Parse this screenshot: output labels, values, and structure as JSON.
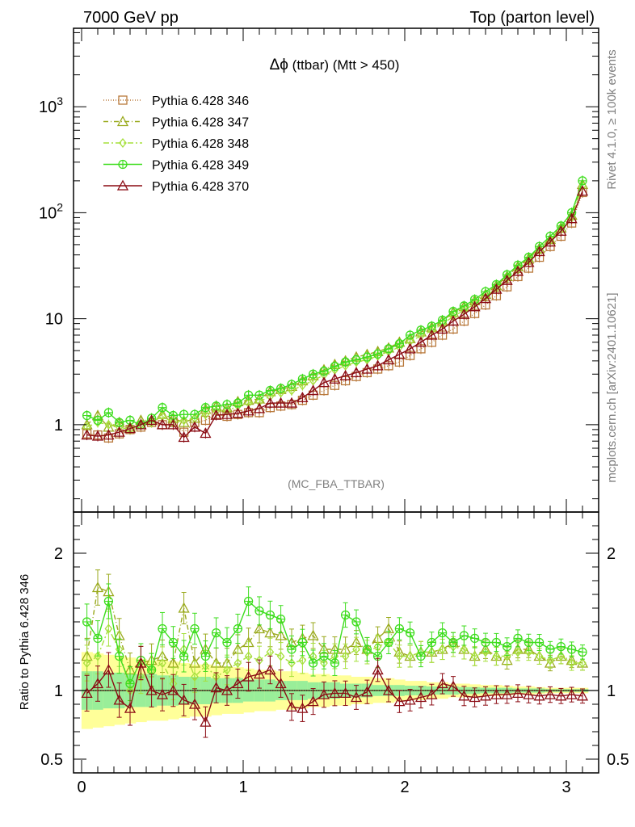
{
  "header": {
    "left_title": "7000 GeV pp",
    "right_title": "Top (parton level)"
  },
  "side_labels": {
    "rivet": "Rivet 4.1.0, ≥ 100k events",
    "mcplots": "mcplots.cern.ch [arXiv:2401.10621]"
  },
  "chart_data": {
    "type": "line",
    "title_symbol": "Δϕ",
    "title": "(ttbar) (Mtt > 450)",
    "watermark": "(MC_FBA_TTBAR)",
    "x": [
      0.033,
      0.1,
      0.167,
      0.233,
      0.3,
      0.367,
      0.433,
      0.5,
      0.567,
      0.633,
      0.7,
      0.767,
      0.833,
      0.9,
      0.967,
      1.033,
      1.1,
      1.167,
      1.233,
      1.3,
      1.367,
      1.433,
      1.5,
      1.567,
      1.633,
      1.7,
      1.767,
      1.833,
      1.9,
      1.967,
      2.033,
      2.1,
      2.167,
      2.233,
      2.3,
      2.367,
      2.433,
      2.5,
      2.567,
      2.633,
      2.7,
      2.767,
      2.833,
      2.9,
      2.967,
      3.033,
      3.1
    ],
    "xlim": [
      -0.05,
      3.2
    ],
    "xticks": [
      "0",
      "1",
      "2",
      "3"
    ],
    "xtick_values": [
      0,
      1,
      2,
      3
    ],
    "main": {
      "yscale": "log",
      "ylim": [
        0.15,
        5500
      ],
      "ytick_labels": [
        {
          "value": 1,
          "base": "1",
          "exp": ""
        },
        {
          "value": 10,
          "base": "10",
          "exp": ""
        },
        {
          "value": 100,
          "base": "10",
          "exp": "2"
        },
        {
          "value": 1000,
          "base": "10",
          "exp": "3"
        }
      ]
    },
    "ratio": {
      "ylabel": "Ratio to Pythia 6.428 346",
      "ylim": [
        0.4,
        2.3
      ],
      "ytick_labels": [
        "0.5",
        "1",
        "2"
      ],
      "ytick_values": [
        0.5,
        1,
        2
      ],
      "band_green_halfwidth": [
        0.14,
        0.14,
        0.13,
        0.13,
        0.12,
        0.12,
        0.12,
        0.11,
        0.11,
        0.1,
        0.1,
        0.1,
        0.09,
        0.09,
        0.09,
        0.08,
        0.08,
        0.08,
        0.07,
        0.07,
        0.07,
        0.06,
        0.06,
        0.06,
        0.05,
        0.05,
        0.05,
        0.04,
        0.04,
        0.04,
        0.035,
        0.035,
        0.03,
        0.03,
        0.03,
        0.025,
        0.025,
        0.02,
        0.02,
        0.02,
        0.015,
        0.015,
        0.015,
        0.01,
        0.01,
        0.01,
        0.01
      ],
      "band_yellow_halfwidth": [
        0.28,
        0.27,
        0.26,
        0.25,
        0.24,
        0.23,
        0.22,
        0.22,
        0.21,
        0.2,
        0.19,
        0.19,
        0.18,
        0.17,
        0.17,
        0.16,
        0.15,
        0.15,
        0.14,
        0.14,
        0.13,
        0.12,
        0.12,
        0.11,
        0.11,
        0.1,
        0.1,
        0.09,
        0.09,
        0.08,
        0.07,
        0.07,
        0.06,
        0.06,
        0.05,
        0.05,
        0.045,
        0.04,
        0.04,
        0.035,
        0.03,
        0.03,
        0.025,
        0.02,
        0.02,
        0.02,
        0.02
      ]
    },
    "series": [
      {
        "name": "Pythia 6.428 346",
        "color": "#b8783a",
        "marker": "square",
        "dash": "1,2",
        "values": [
          0.82,
          0.8,
          0.75,
          0.82,
          0.9,
          0.95,
          1.05,
          1.0,
          1.05,
          0.85,
          1.05,
          1.1,
          1.25,
          1.2,
          1.25,
          1.3,
          1.3,
          1.45,
          1.5,
          1.55,
          1.7,
          1.9,
          2.1,
          2.35,
          2.6,
          2.85,
          3.1,
          3.35,
          3.6,
          3.9,
          4.5,
          5.2,
          6.0,
          7.0,
          8.0,
          9.5,
          11.2,
          13.5,
          16.5,
          20.0,
          25.0,
          30.0,
          38.0,
          48.0,
          60.0,
          80.0,
          155.0
        ],
        "ratio": [
          1,
          1,
          1,
          1,
          1,
          1,
          1,
          1,
          1,
          1,
          1,
          1,
          1,
          1,
          1,
          1,
          1,
          1,
          1,
          1,
          1,
          1,
          1,
          1,
          1,
          1,
          1,
          1,
          1,
          1,
          1,
          1,
          1,
          1,
          1,
          1,
          1,
          1,
          1,
          1,
          1,
          1,
          1,
          1,
          1,
          1,
          1
        ]
      },
      {
        "name": "Pythia 6.428 347",
        "color": "#9aaa1e",
        "marker": "triangle",
        "dash": "6,3,1,3",
        "values": [
          1.0,
          1.22,
          0.95,
          1.05,
          0.95,
          1.1,
          1.1,
          1.25,
          1.15,
          1.05,
          1.15,
          1.4,
          1.5,
          1.45,
          1.65,
          1.7,
          1.75,
          2.05,
          2.15,
          2.3,
          2.6,
          2.9,
          3.3,
          3.7,
          4.0,
          4.35,
          4.6,
          4.9,
          5.3,
          6.0,
          6.5,
          7.5,
          8.3,
          9.5,
          11.5,
          13.0,
          14.8,
          17.0,
          20.5,
          25.0,
          31.0,
          37.0,
          46.0,
          56.0,
          72.0,
          95.0,
          185.0
        ],
        "ratio": [
          1.25,
          1.75,
          1.72,
          1.4,
          1.15,
          1.2,
          1.22,
          1.25,
          1.2,
          1.6,
          1.2,
          1.3,
          1.2,
          1.2,
          1.3,
          1.35,
          1.45,
          1.42,
          1.4,
          1.35,
          1.38,
          1.4,
          1.3,
          1.3,
          1.3,
          1.35,
          1.3,
          1.38,
          1.45,
          1.28,
          1.25,
          1.28,
          1.28,
          1.3,
          1.35,
          1.3,
          1.25,
          1.3,
          1.25,
          1.22,
          1.3,
          1.3,
          1.25,
          1.2,
          1.25,
          1.22,
          1.2
        ]
      },
      {
        "name": "Pythia 6.428 348",
        "color": "#a6e03c",
        "marker": "diamond",
        "dash": "7,3,2,3",
        "values": [
          0.95,
          1.05,
          1.0,
          0.95,
          0.9,
          1.0,
          1.05,
          1.2,
          1.05,
          1.1,
          1.15,
          1.25,
          1.35,
          1.35,
          1.5,
          1.6,
          1.65,
          1.85,
          2.0,
          2.1,
          2.35,
          2.6,
          2.95,
          3.3,
          3.6,
          3.9,
          4.1,
          4.45,
          4.9,
          5.4,
          6.1,
          6.9,
          7.7,
          8.9,
          10.5,
          12.0,
          13.8,
          16.0,
          19.5,
          24.0,
          29.0,
          35.0,
          44.0,
          55.0,
          70.0,
          90.0,
          180.0
        ],
        "ratio": [
          1.2,
          1.25,
          1.45,
          1.3,
          1.0,
          1.1,
          1.15,
          1.2,
          1.05,
          1.3,
          1.1,
          1.18,
          1.1,
          1.15,
          1.2,
          1.25,
          1.22,
          1.28,
          1.25,
          1.2,
          1.22,
          1.25,
          1.2,
          1.25,
          1.25,
          1.3,
          1.28,
          1.32,
          1.35,
          1.25,
          1.25,
          1.28,
          1.28,
          1.3,
          1.32,
          1.3,
          1.25,
          1.28,
          1.25,
          1.25,
          1.28,
          1.28,
          1.25,
          1.22,
          1.25,
          1.2,
          1.2
        ]
      },
      {
        "name": "Pythia 6.428 349",
        "color": "#3ddd1d",
        "marker": "circle",
        "dash": "",
        "values": [
          1.22,
          1.1,
          1.3,
          1.05,
          1.1,
          1.0,
          1.15,
          1.45,
          1.22,
          1.25,
          1.25,
          1.45,
          1.5,
          1.55,
          1.6,
          1.9,
          1.9,
          2.1,
          2.2,
          2.4,
          2.7,
          3.0,
          3.2,
          3.55,
          3.9,
          4.1,
          4.35,
          4.65,
          5.2,
          5.8,
          7.0,
          7.8,
          8.5,
          9.7,
          11.7,
          13.2,
          15.2,
          18.0,
          21.0,
          26.0,
          32.0,
          38.0,
          48.0,
          60.0,
          75.0,
          100.0,
          200.0
        ],
        "ratio": [
          1.5,
          1.38,
          1.65,
          1.25,
          1.05,
          1.22,
          1.15,
          1.45,
          1.35,
          1.25,
          1.45,
          1.25,
          1.42,
          1.35,
          1.45,
          1.65,
          1.58,
          1.55,
          1.52,
          1.3,
          1.35,
          1.2,
          1.25,
          1.2,
          1.55,
          1.5,
          1.3,
          1.25,
          1.35,
          1.45,
          1.42,
          1.25,
          1.35,
          1.42,
          1.35,
          1.4,
          1.38,
          1.35,
          1.35,
          1.32,
          1.38,
          1.35,
          1.35,
          1.3,
          1.32,
          1.3,
          1.28
        ]
      },
      {
        "name": "Pythia 6.428 370",
        "color": "#8b0c14",
        "marker": "triangle",
        "dash": "",
        "values": [
          0.8,
          0.78,
          0.8,
          0.85,
          0.92,
          1.0,
          1.1,
          1.0,
          1.0,
          0.76,
          0.95,
          0.83,
          1.23,
          1.25,
          1.28,
          1.35,
          1.42,
          1.6,
          1.6,
          1.6,
          1.8,
          2.1,
          2.5,
          2.7,
          2.9,
          3.1,
          3.35,
          3.6,
          4.1,
          4.6,
          5.2,
          6.0,
          7.0,
          8.0,
          9.5,
          11.0,
          13.0,
          15.5,
          19.0,
          23.0,
          28.0,
          34.0,
          43.0,
          53.0,
          67.0,
          88.0,
          160.0
        ],
        "ratio": [
          0.98,
          1.05,
          1.15,
          0.93,
          0.87,
          1.2,
          1.0,
          0.97,
          1.0,
          0.93,
          0.9,
          0.77,
          1.02,
          1.0,
          1.05,
          1.1,
          1.12,
          1.15,
          1.05,
          0.88,
          0.87,
          0.92,
          0.97,
          0.98,
          0.98,
          0.95,
          0.99,
          1.15,
          1.0,
          0.92,
          0.93,
          0.95,
          0.97,
          1.05,
          1.03,
          0.96,
          0.95,
          0.96,
          0.97,
          0.97,
          0.98,
          0.97,
          0.96,
          0.97,
          0.96,
          0.97,
          0.96
        ]
      }
    ]
  }
}
